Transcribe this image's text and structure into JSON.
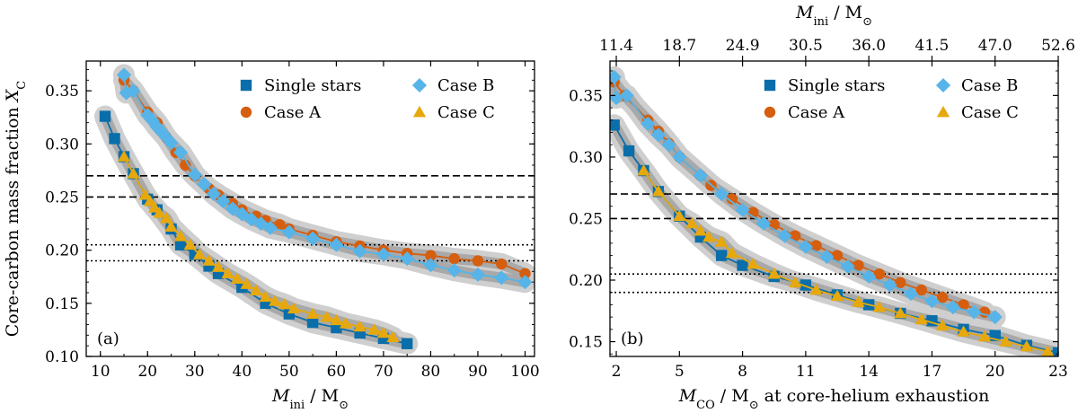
{
  "chart_data": [
    {
      "type": "line",
      "panel_label": "(a)",
      "xlabel_main": "M",
      "xlabel_sub": "ini",
      "xlabel_unit": " / M",
      "xlabel_sun": "⊙",
      "ylabel": "Core-carbon mass fraction ",
      "ylabel_sym": "X",
      "ylabel_sub": "C",
      "xlim": [
        7,
        102
      ],
      "ylim": [
        0.1,
        0.378
      ],
      "xticks": [
        10,
        20,
        30,
        40,
        50,
        60,
        70,
        80,
        90,
        100
      ],
      "yticks": [
        0.1,
        0.15,
        0.2,
        0.25,
        0.3,
        0.35
      ],
      "ytick_labels": [
        "0.10",
        "0.15",
        "0.20",
        "0.25",
        "0.30",
        "0.35"
      ],
      "hlines": [
        {
          "y": 0.27,
          "style": "dashed"
        },
        {
          "y": 0.25,
          "style": "dashed"
        },
        {
          "y": 0.205,
          "style": "dotted"
        },
        {
          "y": 0.19,
          "style": "dotted"
        }
      ],
      "legend": [
        {
          "label": "Single stars",
          "marker": "square",
          "color": "#0a6eaa"
        },
        {
          "label": "Case A",
          "marker": "circle",
          "color": "#d55e0f"
        },
        {
          "label": "Case B",
          "marker": "diamond",
          "color": "#56b4e9"
        },
        {
          "label": "Case C",
          "marker": "triangle",
          "color": "#e6a80c"
        }
      ],
      "series": [
        {
          "name": "Single stars",
          "marker": "square",
          "color": "#0a6eaa",
          "x": [
            11,
            13,
            15,
            17,
            20,
            22,
            25,
            27,
            30,
            33,
            35,
            40,
            45,
            50,
            55,
            60,
            65,
            70,
            75
          ],
          "y": [
            0.326,
            0.305,
            0.288,
            0.272,
            0.248,
            0.238,
            0.22,
            0.205,
            0.196,
            0.185,
            0.178,
            0.165,
            0.15,
            0.14,
            0.132,
            0.127,
            0.122,
            0.117,
            0.112
          ]
        },
        {
          "name": "Case A",
          "marker": "circle",
          "color": "#d55e0f",
          "x": [
            15,
            17,
            20,
            22,
            24,
            26,
            28,
            30,
            33,
            35,
            38,
            40,
            43,
            45,
            48,
            50,
            55,
            60,
            65,
            70,
            75,
            80,
            85,
            90,
            95,
            100
          ],
          "y": [
            0.36,
            0.35,
            0.33,
            0.32,
            0.306,
            0.292,
            0.28,
            0.27,
            0.258,
            0.252,
            0.244,
            0.238,
            0.232,
            0.228,
            0.224,
            0.22,
            0.214,
            0.208,
            0.204,
            0.2,
            0.197,
            0.195,
            0.192,
            0.19,
            0.187,
            0.178
          ]
        },
        {
          "name": "Case B",
          "marker": "diamond",
          "color": "#56b4e9",
          "x": [
            15,
            15.5,
            17,
            20,
            21,
            22,
            23,
            24,
            25,
            27,
            30,
            32,
            34,
            36,
            38,
            40,
            42,
            44,
            46,
            50,
            55,
            60,
            65,
            70,
            75,
            80,
            85,
            90,
            95,
            100
          ],
          "y": [
            0.365,
            0.348,
            0.35,
            0.327,
            0.322,
            0.316,
            0.311,
            0.306,
            0.301,
            0.292,
            0.271,
            0.262,
            0.253,
            0.246,
            0.239,
            0.234,
            0.229,
            0.225,
            0.221,
            0.217,
            0.211,
            0.205,
            0.199,
            0.196,
            0.192,
            0.186,
            0.181,
            0.177,
            0.174,
            0.17
          ]
        },
        {
          "name": "Case C",
          "marker": "triangle",
          "color": "#e6a80c",
          "x": [
            15,
            17,
            19.5,
            20.5,
            21.5,
            22.5,
            24,
            25,
            27,
            29,
            31,
            33,
            35,
            37,
            39,
            41,
            43,
            45,
            47,
            49,
            51,
            55,
            58,
            60,
            62,
            65,
            68,
            70,
            72
          ],
          "y": [
            0.288,
            0.272,
            0.252,
            0.246,
            0.24,
            0.235,
            0.23,
            0.222,
            0.213,
            0.205,
            0.196,
            0.19,
            0.184,
            0.178,
            0.173,
            0.168,
            0.162,
            0.156,
            0.152,
            0.149,
            0.145,
            0.14,
            0.137,
            0.134,
            0.131,
            0.128,
            0.125,
            0.122,
            0.118
          ]
        }
      ]
    },
    {
      "type": "line",
      "panel_label": "(b)",
      "xlabel_main": "M",
      "xlabel_sub": "CO",
      "xlabel_unit": " / M",
      "xlabel_sun": "⊙",
      "xlabel_tail": " at core-helium exhaustion",
      "top_label_main": "M",
      "top_label_sub": "ini",
      "top_label_unit": " / M",
      "top_label_sun": "⊙",
      "xlim": [
        1.7,
        23
      ],
      "ylim": [
        0.138,
        0.378
      ],
      "xticks": [
        2,
        5,
        8,
        11,
        14,
        17,
        20,
        23
      ],
      "top_ticks": [
        2,
        5,
        8,
        11,
        14,
        17,
        20,
        23
      ],
      "top_tick_labels": [
        "11.4",
        "18.7",
        "24.9",
        "30.5",
        "36.0",
        "41.5",
        "47.0",
        "52.6"
      ],
      "yticks": [
        0.15,
        0.2,
        0.25,
        0.3,
        0.35
      ],
      "ytick_labels": [
        "0.15",
        "0.20",
        "0.25",
        "0.30",
        "0.35"
      ],
      "hlines": [
        {
          "y": 0.27,
          "style": "dashed"
        },
        {
          "y": 0.25,
          "style": "dashed"
        },
        {
          "y": 0.205,
          "style": "dotted"
        },
        {
          "y": 0.19,
          "style": "dotted"
        }
      ],
      "legend": [
        {
          "label": "Single stars",
          "marker": "square",
          "color": "#0a6eaa"
        },
        {
          "label": "Case A",
          "marker": "circle",
          "color": "#d55e0f"
        },
        {
          "label": "Case B",
          "marker": "diamond",
          "color": "#56b4e9"
        },
        {
          "label": "Case C",
          "marker": "triangle",
          "color": "#e6a80c"
        }
      ],
      "series": [
        {
          "name": "Single stars",
          "marker": "square",
          "color": "#0a6eaa",
          "x": [
            1.9,
            2.6,
            3.3,
            4.0,
            5.0,
            6.0,
            7.0,
            8.0,
            9.5,
            11.0,
            12.5,
            14.0,
            15.5,
            17.0,
            18.5,
            20.0,
            21.5,
            23.0
          ],
          "y": [
            0.326,
            0.305,
            0.289,
            0.272,
            0.252,
            0.235,
            0.22,
            0.212,
            0.203,
            0.196,
            0.188,
            0.18,
            0.173,
            0.167,
            0.16,
            0.155,
            0.147,
            0.141
          ]
        },
        {
          "name": "Case A",
          "marker": "circle",
          "color": "#d55e0f",
          "x": [
            1.9,
            2.4,
            3.5,
            4.0,
            4.5,
            5.0,
            6.0,
            6.5,
            7.5,
            8.5,
            9.5,
            10.5,
            11.5,
            12.5,
            13.5,
            14.5,
            15.5,
            16.5,
            17.5,
            18.5,
            19.5
          ],
          "y": [
            0.361,
            0.35,
            0.33,
            0.321,
            0.311,
            0.3,
            0.285,
            0.277,
            0.266,
            0.255,
            0.245,
            0.236,
            0.228,
            0.22,
            0.212,
            0.205,
            0.198,
            0.192,
            0.186,
            0.18,
            0.174
          ]
        },
        {
          "name": "Case B",
          "marker": "diamond",
          "color": "#56b4e9",
          "x": [
            1.9,
            2.0,
            2.5,
            3.5,
            4.0,
            4.5,
            5.0,
            6.0,
            7.0,
            8.0,
            9.0,
            10.0,
            11.0,
            12.0,
            13.0,
            14.0,
            15.0,
            16.0,
            17.0,
            18.0,
            19.0,
            20.0
          ],
          "y": [
            0.365,
            0.348,
            0.35,
            0.327,
            0.318,
            0.31,
            0.3,
            0.285,
            0.27,
            0.257,
            0.246,
            0.236,
            0.227,
            0.219,
            0.211,
            0.203,
            0.196,
            0.189,
            0.183,
            0.178,
            0.174,
            0.17
          ]
        },
        {
          "name": "Case C",
          "marker": "triangle",
          "color": "#e6a80c",
          "x": [
            3.3,
            4.0,
            5.0,
            5.6,
            6.0,
            6.4,
            7.0,
            7.5,
            8.5,
            9.5,
            10.5,
            11.5,
            12.5,
            13.5,
            14.5,
            15.5,
            16.5,
            17.5,
            18.5,
            19.5,
            20.5,
            21.5,
            22.5
          ],
          "y": [
            0.289,
            0.272,
            0.252,
            0.246,
            0.24,
            0.235,
            0.231,
            0.222,
            0.213,
            0.205,
            0.198,
            0.192,
            0.187,
            0.182,
            0.178,
            0.173,
            0.168,
            0.163,
            0.158,
            0.154,
            0.15,
            0.146,
            0.142
          ]
        }
      ]
    }
  ]
}
